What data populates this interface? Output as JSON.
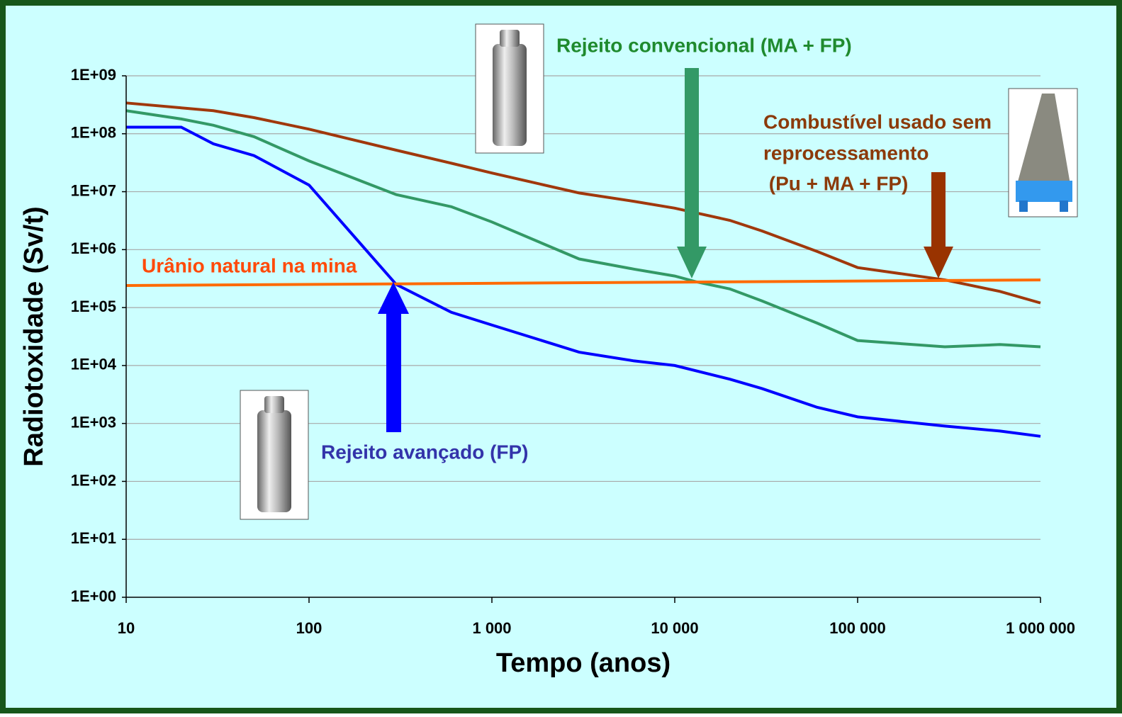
{
  "chart_data": {
    "type": "line",
    "x_label": "Tempo (anos)",
    "y_label": "Radiotoxidade  (Sv/t)",
    "xscale": "log",
    "yscale": "log",
    "grid": true,
    "xlim": [
      10,
      1000000
    ],
    "ylim": [
      1,
      1000000000
    ],
    "xticks": [
      10,
      100,
      {
        "value": 1000,
        "label": "1 000"
      },
      {
        "value": 10000,
        "label": "10 000"
      },
      {
        "value": 100000,
        "label": "100 000"
      },
      {
        "value": 1000000,
        "label": "1 000 000"
      }
    ],
    "yticks": [
      {
        "value": 1,
        "label": "1E+00"
      },
      {
        "value": 10,
        "label": "1E+01"
      },
      {
        "value": 100,
        "label": "1E+02"
      },
      {
        "value": 1000,
        "label": "1E+03"
      },
      {
        "value": 10000,
        "label": "1E+04"
      },
      {
        "value": 100000,
        "label": "1E+05"
      },
      {
        "value": 1000000,
        "label": "1E+06"
      },
      {
        "value": 10000000,
        "label": "1E+07"
      },
      {
        "value": 100000000,
        "label": "1E+08"
      },
      {
        "value": 1000000000,
        "label": "1E+09"
      }
    ],
    "series": [
      {
        "color": "#a0380c",
        "x": [
          10,
          20,
          30,
          50,
          100,
          300,
          600,
          1000,
          3000,
          6000,
          10000,
          20000,
          30000,
          60000,
          100000,
          300000,
          600000,
          1000000
        ],
        "values": [
          340000000,
          280000000,
          250000000,
          190000000,
          120000000,
          52000000,
          31000000,
          21000000,
          9500000,
          6800000,
          5200000,
          3200000,
          2100000,
          930000,
          490000,
          300000,
          190000,
          120000
        ]
      },
      {
        "color": "#339966",
        "x": [
          10,
          20,
          30,
          50,
          100,
          300,
          600,
          1000,
          3000,
          6000,
          10000,
          13000,
          20000,
          30000,
          60000,
          100000,
          300000,
          600000,
          1000000
        ],
        "values": [
          250000000,
          180000000,
          140000000,
          89000000,
          34000000,
          8900000,
          5500000,
          3000000,
          690000,
          460000,
          350000,
          280000,
          210000,
          130000,
          54000,
          27000,
          21000,
          23000,
          21000
        ]
      },
      {
        "color": "#0000ff",
        "x": [
          10,
          20,
          30,
          50,
          100,
          300,
          600,
          1000,
          3000,
          6000,
          10000,
          20000,
          30000,
          60000,
          100000,
          300000,
          600000,
          1000000
        ],
        "values": [
          130000000,
          130000000,
          67000000,
          42000000,
          13000000,
          250000,
          83000,
          50000,
          17000,
          12000,
          10000,
          5800,
          4000,
          1900,
          1300,
          900,
          740,
          600
        ]
      },
      {
        "color": "#ff6a00",
        "x": [
          10,
          1000000
        ],
        "values": [
          240000,
          300000
        ]
      }
    ],
    "annotations": [
      {
        "text": "Rejeito convencional (MA + FP)",
        "color": "#1f8a2e"
      },
      {
        "text": "Combustível usado sem",
        "color": "#8b3a0a"
      },
      {
        "text": "reprocessamento",
        "color": "#8b3a0a"
      },
      {
        "text": " (Pu + MA + FP)",
        "color": "#8b3a0a"
      },
      {
        "text": "Urânio natural na mina",
        "color": "#ff4a0a"
      },
      {
        "text": "Rejeito avançado (FP)",
        "color": "#3333aa"
      }
    ]
  }
}
